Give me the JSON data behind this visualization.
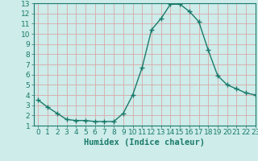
{
  "x": [
    0,
    1,
    2,
    3,
    4,
    5,
    6,
    7,
    8,
    9,
    10,
    11,
    12,
    13,
    14,
    15,
    16,
    17,
    18,
    19,
    20,
    21,
    22,
    23
  ],
  "y": [
    3.5,
    2.8,
    2.2,
    1.6,
    1.5,
    1.5,
    1.4,
    1.4,
    1.4,
    2.2,
    4.0,
    6.7,
    10.4,
    11.5,
    12.9,
    12.9,
    12.2,
    11.2,
    8.4,
    5.9,
    5.0,
    4.6,
    4.2,
    4.0
  ],
  "line_color": "#1a7a6a",
  "marker": "+",
  "marker_size": 4,
  "bg_color": "#cdecea",
  "grid_color": "#d9a8a8",
  "xlabel": "Humidex (Indice chaleur)",
  "ylim": [
    1,
    13
  ],
  "xlim": [
    -0.5,
    23
  ],
  "yticks": [
    1,
    2,
    3,
    4,
    5,
    6,
    7,
    8,
    9,
    10,
    11,
    12,
    13
  ],
  "xticks": [
    0,
    1,
    2,
    3,
    4,
    5,
    6,
    7,
    8,
    9,
    10,
    11,
    12,
    13,
    14,
    15,
    16,
    17,
    18,
    19,
    20,
    21,
    22,
    23
  ],
  "tick_color": "#1a7a6a",
  "label_color": "#1a7a6a",
  "xlabel_fontsize": 7.5,
  "tick_fontsize": 6.5
}
